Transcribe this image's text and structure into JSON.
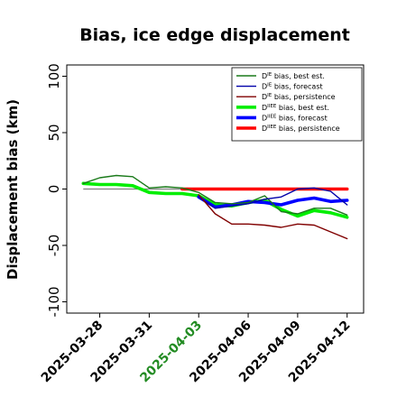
{
  "chart_data": {
    "type": "line",
    "title": "Bias, ice edge displacement",
    "xlabel": "",
    "ylabel": "Displacement bias (km)",
    "ylim": [
      -110,
      110
    ],
    "xlim": [
      "2025-03-26",
      "2025-04-13"
    ],
    "yticks": [
      -100,
      -50,
      0,
      50,
      100
    ],
    "xticks": [
      "2025-03-28",
      "2025-03-31",
      "2025-04-03",
      "2025-04-06",
      "2025-04-09",
      "2025-04-12"
    ],
    "highlight_tick": "2025-04-03",
    "highlight_color": "#228b22",
    "grid": false,
    "legend_position": "top-right",
    "series": [
      {
        "name": "D^IE bias, best est.",
        "color": "#1a7a1a",
        "width": "thin",
        "points": [
          [
            "2025-03-27",
            5
          ],
          [
            "2025-03-28",
            10
          ],
          [
            "2025-03-29",
            12
          ],
          [
            "2025-03-30",
            11
          ],
          [
            "2025-03-31",
            1
          ],
          [
            "2025-04-01",
            2
          ],
          [
            "2025-04-02",
            1
          ],
          [
            "2025-04-03",
            -3
          ],
          [
            "2025-04-04",
            -12
          ],
          [
            "2025-04-05",
            -13
          ],
          [
            "2025-04-06",
            -12
          ],
          [
            "2025-04-07",
            -6
          ],
          [
            "2025-04-08",
            -20
          ],
          [
            "2025-04-09",
            -22
          ],
          [
            "2025-04-10",
            -17
          ],
          [
            "2025-04-11",
            -17
          ],
          [
            "2025-04-12",
            -23
          ]
        ]
      },
      {
        "name": "D^IE bias, forecast",
        "color": "#0000aa",
        "width": "thin",
        "points": [
          [
            "2025-04-03",
            -7
          ],
          [
            "2025-04-04",
            -17
          ],
          [
            "2025-04-05",
            -15
          ],
          [
            "2025-04-06",
            -13
          ],
          [
            "2025-04-07",
            -9
          ],
          [
            "2025-04-08",
            -7
          ],
          [
            "2025-04-09",
            0
          ],
          [
            "2025-04-10",
            1
          ],
          [
            "2025-04-11",
            -2
          ],
          [
            "2025-04-12",
            -14
          ]
        ]
      },
      {
        "name": "D^IE bias, persistence",
        "color": "#800000",
        "width": "thin",
        "points": [
          [
            "2025-04-03",
            -5
          ],
          [
            "2025-04-04",
            -22
          ],
          [
            "2025-04-05",
            -31
          ],
          [
            "2025-04-06",
            -31
          ],
          [
            "2025-04-07",
            -32
          ],
          [
            "2025-04-08",
            -34
          ],
          [
            "2025-04-09",
            -31
          ],
          [
            "2025-04-10",
            -32
          ],
          [
            "2025-04-11",
            -38
          ],
          [
            "2025-04-12",
            -44
          ]
        ]
      },
      {
        "name": "D^IIEE bias, best est.",
        "color": "#00ee00",
        "width": "thick",
        "points": [
          [
            "2025-03-27",
            5
          ],
          [
            "2025-03-28",
            4
          ],
          [
            "2025-03-29",
            4
          ],
          [
            "2025-03-30",
            3
          ],
          [
            "2025-03-31",
            -3
          ],
          [
            "2025-04-01",
            -4
          ],
          [
            "2025-04-02",
            -4
          ],
          [
            "2025-04-03",
            -6
          ],
          [
            "2025-04-04",
            -14
          ],
          [
            "2025-04-05",
            -15
          ],
          [
            "2025-04-06",
            -12
          ],
          [
            "2025-04-07",
            -10
          ],
          [
            "2025-04-08",
            -18
          ],
          [
            "2025-04-09",
            -24
          ],
          [
            "2025-04-10",
            -19
          ],
          [
            "2025-04-11",
            -21
          ],
          [
            "2025-04-12",
            -25
          ]
        ]
      },
      {
        "name": "D^IIEE bias, forecast",
        "color": "#0000ff",
        "width": "thick",
        "points": [
          [
            "2025-04-03",
            -7
          ],
          [
            "2025-04-04",
            -16
          ],
          [
            "2025-04-05",
            -14
          ],
          [
            "2025-04-06",
            -11
          ],
          [
            "2025-04-07",
            -12
          ],
          [
            "2025-04-08",
            -14
          ],
          [
            "2025-04-09",
            -10
          ],
          [
            "2025-04-10",
            -8
          ],
          [
            "2025-04-11",
            -11
          ],
          [
            "2025-04-12",
            -10
          ]
        ]
      },
      {
        "name": "D^IIEE bias, persistence",
        "color": "#ff0000",
        "width": "thick",
        "points": [
          [
            "2025-04-02",
            0
          ],
          [
            "2025-04-03",
            0
          ],
          [
            "2025-04-04",
            0
          ],
          [
            "2025-04-05",
            0
          ],
          [
            "2025-04-06",
            0
          ],
          [
            "2025-04-07",
            0
          ],
          [
            "2025-04-08",
            0
          ],
          [
            "2025-04-09",
            0
          ],
          [
            "2025-04-10",
            0
          ],
          [
            "2025-04-11",
            0
          ],
          [
            "2025-04-12",
            0
          ]
        ]
      }
    ],
    "reference_lines": [
      {
        "y": 0,
        "from": "2025-03-27",
        "to": "2025-04-12",
        "color": "#808080"
      }
    ],
    "legend": [
      {
        "main": "D",
        "sup": "IE",
        "rest": " bias, best est.",
        "color": "#1a7a1a",
        "width": "thin"
      },
      {
        "main": "D",
        "sup": "IE",
        "rest": " bias, forecast",
        "color": "#0000aa",
        "width": "thin"
      },
      {
        "main": "D",
        "sup": "IE",
        "rest": " bias, persistence",
        "color": "#800000",
        "width": "thin"
      },
      {
        "main": "D",
        "sup": "IIEE",
        "rest": " bias, best est.",
        "color": "#00ee00",
        "width": "thick"
      },
      {
        "main": "D",
        "sup": "IIEE",
        "rest": " bias, forecast",
        "color": "#0000ff",
        "width": "thick"
      },
      {
        "main": "D",
        "sup": "IIEE",
        "rest": " bias, persistence",
        "color": "#ff0000",
        "width": "thick"
      }
    ]
  }
}
